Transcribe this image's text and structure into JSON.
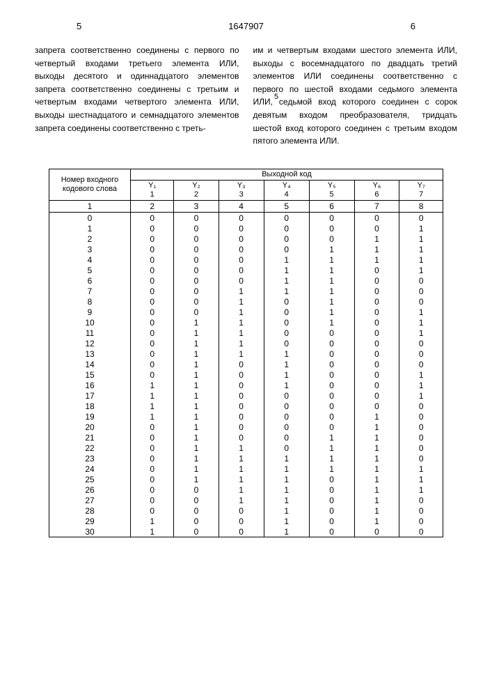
{
  "header": {
    "left_num": "5",
    "doc_num": "1647907",
    "right_num": "6"
  },
  "text": {
    "left_paragraph": "запрета соответственно соединены с первого по четвертый входами третьего элемента ИЛИ, выходы десятого и одиннадцатого элементов запрета соответственно соединены с третьим и четвертым входами четвертого элемента ИЛИ, выходы шестнадцатого и семнадцатого элементов запрета соединены соответственно с треть-",
    "right_paragraph": "им и четвертым входами шестого элемента ИЛИ, выходы с восемнадцатого по двадцать третий элементов ИЛИ соединены соответственно с первого по шестой входами седьмого элемента ИЛИ, седьмой вход которого соединен с сорок девятым входом преобразователя, тридцать шестой вход которого соединен с третьим входом пятого элемента ИЛИ.",
    "margin_number": "5"
  },
  "table": {
    "col_header_left": "Номер входного кодового слова",
    "col_header_right": "Выходной код",
    "cols_top": [
      "Y₁",
      "Y₂",
      "Y₃",
      "Y₄",
      "Y₅",
      "Y₆",
      "Y₇"
    ],
    "cols_bot": [
      "1",
      "2",
      "3",
      "4",
      "5",
      "6",
      "7"
    ],
    "row_nums": [
      "1",
      "2",
      "3",
      "4",
      "5",
      "6",
      "7",
      "8"
    ],
    "rows": [
      [
        "0",
        "0",
        "0",
        "0",
        "0",
        "0",
        "0",
        "0"
      ],
      [
        "1",
        "0",
        "0",
        "0",
        "0",
        "0",
        "0",
        "1"
      ],
      [
        "2",
        "0",
        "0",
        "0",
        "0",
        "0",
        "1",
        "1"
      ],
      [
        "3",
        "0",
        "0",
        "0",
        "0",
        "1",
        "1",
        "1"
      ],
      [
        "4",
        "0",
        "0",
        "0",
        "1",
        "1",
        "1",
        "1"
      ],
      [
        "5",
        "0",
        "0",
        "0",
        "1",
        "1",
        "0",
        "1"
      ],
      [
        "6",
        "0",
        "0",
        "0",
        "1",
        "1",
        "0",
        "0"
      ],
      [
        "7",
        "0",
        "0",
        "1",
        "1",
        "1",
        "0",
        "0"
      ],
      [
        "8",
        "0",
        "0",
        "1",
        "0",
        "1",
        "0",
        "0"
      ],
      [
        "9",
        "0",
        "0",
        "1",
        "0",
        "1",
        "0",
        "1"
      ],
      [
        "10",
        "0",
        "1",
        "1",
        "0",
        "1",
        "0",
        "1"
      ],
      [
        "11",
        "0",
        "1",
        "1",
        "0",
        "0",
        "0",
        "1"
      ],
      [
        "12",
        "0",
        "1",
        "1",
        "0",
        "0",
        "0",
        "0"
      ],
      [
        "13",
        "0",
        "1",
        "1",
        "1",
        "0",
        "0",
        "0"
      ],
      [
        "14",
        "0",
        "1",
        "0",
        "1",
        "0",
        "0",
        "0"
      ],
      [
        "15",
        "0",
        "1",
        "0",
        "1",
        "0",
        "0",
        "1"
      ],
      [
        "16",
        "1",
        "1",
        "0",
        "1",
        "0",
        "0",
        "1"
      ],
      [
        "17",
        "1",
        "1",
        "0",
        "0",
        "0",
        "0",
        "1"
      ],
      [
        "18",
        "1",
        "1",
        "0",
        "0",
        "0",
        "0",
        "0"
      ],
      [
        "19",
        "1",
        "1",
        "0",
        "0",
        "0",
        "1",
        "0"
      ],
      [
        "20",
        "0",
        "1",
        "0",
        "0",
        "0",
        "1",
        "0"
      ],
      [
        "21",
        "0",
        "1",
        "0",
        "0",
        "1",
        "1",
        "0"
      ],
      [
        "22",
        "0",
        "1",
        "1",
        "0",
        "1",
        "1",
        "0"
      ],
      [
        "23",
        "0",
        "1",
        "1",
        "1",
        "1",
        "1",
        "0"
      ],
      [
        "24",
        "0",
        "1",
        "1",
        "1",
        "1",
        "1",
        "1"
      ],
      [
        "25",
        "0",
        "1",
        "1",
        "1",
        "0",
        "1",
        "1"
      ],
      [
        "26",
        "0",
        "0",
        "1",
        "1",
        "0",
        "1",
        "1"
      ],
      [
        "27",
        "0",
        "0",
        "1",
        "1",
        "0",
        "1",
        "0"
      ],
      [
        "28",
        "0",
        "0",
        "0",
        "1",
        "0",
        "1",
        "0"
      ],
      [
        "29",
        "1",
        "0",
        "0",
        "1",
        "0",
        "1",
        "0"
      ],
      [
        "30",
        "1",
        "0",
        "0",
        "1",
        "0",
        "0",
        "0"
      ]
    ]
  }
}
